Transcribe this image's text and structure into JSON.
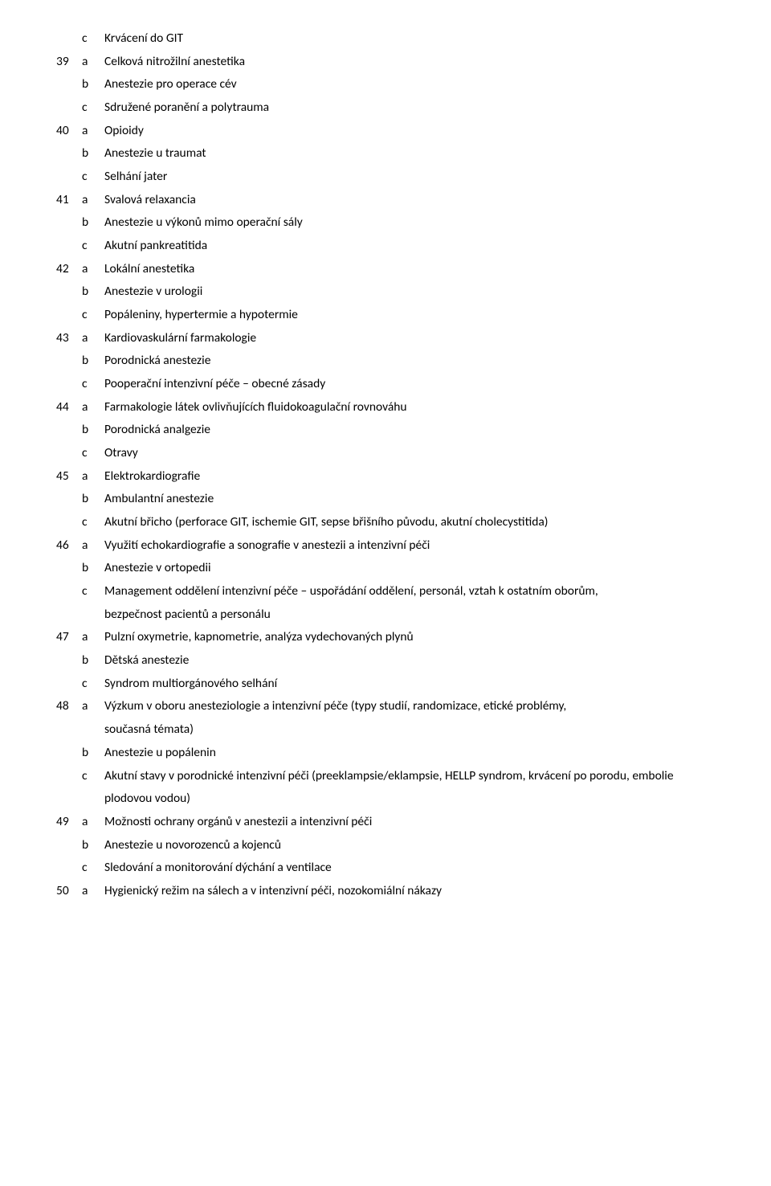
{
  "items": [
    {
      "num": "",
      "let": "c",
      "text": "Krvácení do GIT"
    },
    {
      "num": "39",
      "let": "a",
      "text": "Celková nitrožilní anestetika"
    },
    {
      "num": "",
      "let": "b",
      "text": "Anestezie pro operace cév"
    },
    {
      "num": "",
      "let": "c",
      "text": "Sdružené poranění a polytrauma"
    },
    {
      "num": "40",
      "let": "a",
      "text": "Opioidy"
    },
    {
      "num": "",
      "let": "b",
      "text": "Anestezie u traumat"
    },
    {
      "num": "",
      "let": "c",
      "text": "Selhání jater"
    },
    {
      "num": "41",
      "let": "a",
      "text": "Svalová relaxancia"
    },
    {
      "num": "",
      "let": "b",
      "text": "Anestezie u výkonů mimo operační sály"
    },
    {
      "num": "",
      "let": "c",
      "text": "Akutní pankreatitida"
    },
    {
      "num": "42",
      "let": "a",
      "text": "Lokální anestetika"
    },
    {
      "num": "",
      "let": "b",
      "text": "Anestezie v urologii"
    },
    {
      "num": "",
      "let": "c",
      "text": "Popáleniny, hypertermie a hypotermie"
    },
    {
      "num": "43",
      "let": "a",
      "text": "Kardiovaskulární farmakologie"
    },
    {
      "num": "",
      "let": "b",
      "text": "Porodnická anestezie"
    },
    {
      "num": "",
      "let": "c",
      "text": "Pooperační intenzivní péče – obecné zásady"
    },
    {
      "num": "44",
      "let": "a",
      "text": "Farmakologie látek ovlivňujících fluidokoagulační rovnováhu"
    },
    {
      "num": "",
      "let": "b",
      "text": "Porodnická analgezie"
    },
    {
      "num": "",
      "let": "c",
      "text": "Otravy"
    },
    {
      "num": "45",
      "let": "a",
      "text": "Elektrokardiografie"
    },
    {
      "num": "",
      "let": "b",
      "text": "Ambulantní anestezie"
    },
    {
      "num": "",
      "let": "c",
      "text": "Akutní břicho (perforace GIT, ischemie GIT, sepse břišního původu, akutní cholecystitida)"
    },
    {
      "num": "46",
      "let": "a",
      "text": "Využití echokardiografie a sonografie v anestezii a intenzivní péči"
    },
    {
      "num": "",
      "let": "b",
      "text": "Anestezie v ortopedii"
    },
    {
      "num": "",
      "let": "c",
      "text": "Management oddělení intenzivní péče – uspořádání oddělení, personál, vztah k ostatním oborům,\nbezpečnost pacientů a personálu"
    },
    {
      "num": "47",
      "let": "a",
      "text": "Pulzní oxymetrie, kapnometrie, analýza vydechovaných plynů"
    },
    {
      "num": "",
      "let": "b",
      "text": "Dětská anestezie"
    },
    {
      "num": "",
      "let": "c",
      "text": "Syndrom multiorgánového selhání"
    },
    {
      "num": "48",
      "let": "a",
      "text": "Výzkum v oboru anesteziologie a intenzivní péče (typy studií, randomizace, etické problémy,\nsoučasná témata)"
    },
    {
      "num": "",
      "let": "b",
      "text": "Anestezie u popálenin"
    },
    {
      "num": "",
      "let": "c",
      "text": "Akutní stavy v porodnické intenzivní péči (preeklampsie/eklampsie, HELLP syndrom, krvácení po porodu, embolie plodovou vodou)"
    },
    {
      "num": "49",
      "let": "a",
      "text": "Možnosti ochrany orgánů v anestezii a intenzivní péči"
    },
    {
      "num": "",
      "let": "b",
      "text": "Anestezie u novorozenců a kojenců"
    },
    {
      "num": "",
      "let": "c",
      "text": "Sledování a monitorování dýchání a ventilace"
    },
    {
      "num": "50",
      "let": "a",
      "text": "Hygienický režim na sálech a v intenzivní péči, nozokomiální nákazy"
    }
  ]
}
